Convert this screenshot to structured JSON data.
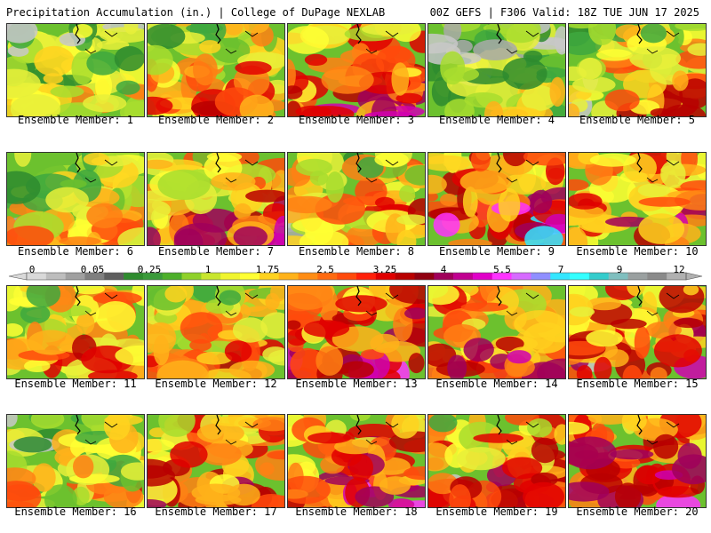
{
  "header": {
    "left": "Precipitation Accumulation (in.) | College of DuPage NEXLAB",
    "right": "00Z GEFS | F306 Valid: 18Z TUE JUN 17 2025"
  },
  "members": [
    {
      "label": "Ensemble Member: 1",
      "intensity": 0.35
    },
    {
      "label": "Ensemble Member: 2",
      "intensity": 0.5
    },
    {
      "label": "Ensemble Member: 3",
      "intensity": 0.62
    },
    {
      "label": "Ensemble Member: 4",
      "intensity": 0.28
    },
    {
      "label": "Ensemble Member: 5",
      "intensity": 0.5
    },
    {
      "label": "Ensemble Member: 6",
      "intensity": 0.42
    },
    {
      "label": "Ensemble Member: 7",
      "intensity": 0.58
    },
    {
      "label": "Ensemble Member: 8",
      "intensity": 0.5
    },
    {
      "label": "Ensemble Member: 9",
      "intensity": 0.72
    },
    {
      "label": "Ensemble Member: 10",
      "intensity": 0.6
    },
    {
      "label": "Ensemble Member: 11",
      "intensity": 0.52
    },
    {
      "label": "Ensemble Member: 12",
      "intensity": 0.5
    },
    {
      "label": "Ensemble Member: 13",
      "intensity": 0.68
    },
    {
      "label": "Ensemble Member: 14",
      "intensity": 0.62
    },
    {
      "label": "Ensemble Member: 15",
      "intensity": 0.65
    },
    {
      "label": "Ensemble Member: 16",
      "intensity": 0.4
    },
    {
      "label": "Ensemble Member: 17",
      "intensity": 0.62
    },
    {
      "label": "Ensemble Member: 18",
      "intensity": 0.65
    },
    {
      "label": "Ensemble Member: 19",
      "intensity": 0.58
    },
    {
      "label": "Ensemble Member: 20",
      "intensity": 0.68
    }
  ],
  "colorbar": {
    "labels": [
      "0",
      "0.05",
      "0.25",
      "1",
      "1.75",
      "2.5",
      "3.25",
      "4",
      "5.5",
      "7",
      "9",
      "12"
    ],
    "colors": [
      "#d9d9d9",
      "#bdbdbd",
      "#a0a0a0",
      "#7f7f7f",
      "#5e5e5e",
      "#2e8b2e",
      "#3a9a3a",
      "#4caf2a",
      "#8fd12a",
      "#c8e62e",
      "#f0f52e",
      "#ffff33",
      "#ffd21f",
      "#ffb21a",
      "#ff8c14",
      "#ff6a10",
      "#ff4a0c",
      "#ff200a",
      "#e00000",
      "#b80000",
      "#900010",
      "#a0005a",
      "#c00090",
      "#e000c8",
      "#ff33ff",
      "#d66bff",
      "#8f8fff",
      "#33e6ff",
      "#33ffff",
      "#33cccc",
      "#7fbfbf",
      "#9aa0a0",
      "#8a8a8a",
      "#b0b0b0"
    ]
  }
}
